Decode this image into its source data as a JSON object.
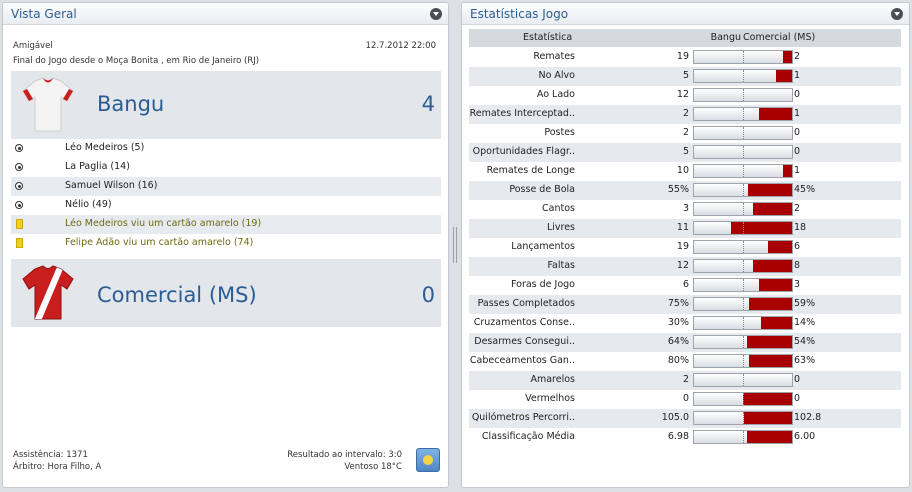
{
  "left_panel": {
    "title": "Vista Geral",
    "match_type": "Amigável",
    "datetime": "12.7.2012 22:00",
    "description": "Final do Jogo desde o Moça Bonita , em Rio de Janeiro (RJ)",
    "home": {
      "name": "Bangu",
      "score": "4",
      "shirt_icon": "white-red-shirt-icon"
    },
    "events": [
      {
        "type": "goal",
        "text": "Léo Medeiros (5)"
      },
      {
        "type": "goal",
        "text": "La Paglia (14)"
      },
      {
        "type": "goal",
        "text": "Samuel Wilson (16)"
      },
      {
        "type": "goal",
        "text": "Nélio (49)"
      },
      {
        "type": "card",
        "text": "Léo Medeiros viu um cartão amarelo (19)"
      },
      {
        "type": "card",
        "text": "Felipe Adão viu um cartão amarelo (74)"
      }
    ],
    "away": {
      "name": "Comercial (MS)",
      "score": "0",
      "shirt_icon": "red-sash-shirt-icon"
    },
    "attendance": "Assistência: 1371",
    "referee": "Árbitro: Hora Filho, A",
    "halftime": "Resultado ao intervalo: 3:0",
    "weather": "Ventoso 18°C"
  },
  "right_panel": {
    "title": "Estatísticas Jogo",
    "header": {
      "stat": "Estatística",
      "home": "Bangu",
      "away": "Comercial (MS)"
    },
    "colors": {
      "bar_fill": "#a80000"
    },
    "stats": [
      {
        "label": "Remates",
        "home": "19",
        "away": "2",
        "away_share": 0.095
      },
      {
        "label": "No Alvo",
        "home": "5",
        "away": "1",
        "away_share": 0.167
      },
      {
        "label": "Ao Lado",
        "home": "12",
        "away": "0",
        "away_share": 0
      },
      {
        "label": "Remates Interceptad..",
        "home": "2",
        "away": "1",
        "away_share": 0.333
      },
      {
        "label": "Postes",
        "home": "2",
        "away": "0",
        "away_share": 0
      },
      {
        "label": "Oportunidades Flagr..",
        "home": "5",
        "away": "0",
        "away_share": 0
      },
      {
        "label": "Remates de Longe",
        "home": "10",
        "away": "1",
        "away_share": 0.091
      },
      {
        "label": "Posse de Bola",
        "home": "55%",
        "away": "45%",
        "away_share": 0.45
      },
      {
        "label": "Cantos",
        "home": "3",
        "away": "2",
        "away_share": 0.4
      },
      {
        "label": "Livres",
        "home": "11",
        "away": "18",
        "away_share": 0.621
      },
      {
        "label": "Lançamentos",
        "home": "19",
        "away": "6",
        "away_share": 0.24
      },
      {
        "label": "Faltas",
        "home": "12",
        "away": "8",
        "away_share": 0.4
      },
      {
        "label": "Foras de Jogo",
        "home": "6",
        "away": "3",
        "away_share": 0.333
      },
      {
        "label": "Passes Completados",
        "home": "75%",
        "away": "59%",
        "away_share": 0.44
      },
      {
        "label": "Cruzamentos Conse..",
        "home": "30%",
        "away": "14%",
        "away_share": 0.318
      },
      {
        "label": "Desarmes Consegui..",
        "home": "64%",
        "away": "54%",
        "away_share": 0.458
      },
      {
        "label": "Cabeceamentos Gan..",
        "home": "80%",
        "away": "63%",
        "away_share": 0.441
      },
      {
        "label": "Amarelos",
        "home": "2",
        "away": "0",
        "away_share": 0
      },
      {
        "label": "Vermelhos",
        "home": "0",
        "away": "0",
        "away_share": 0.5
      },
      {
        "label": "Quilómetros Percorri..",
        "home": "105.0",
        "away": "102.8",
        "away_share": 0.495
      },
      {
        "label": "Classificação Média",
        "home": "6.98",
        "away": "6.00",
        "away_share": 0.462
      }
    ]
  }
}
